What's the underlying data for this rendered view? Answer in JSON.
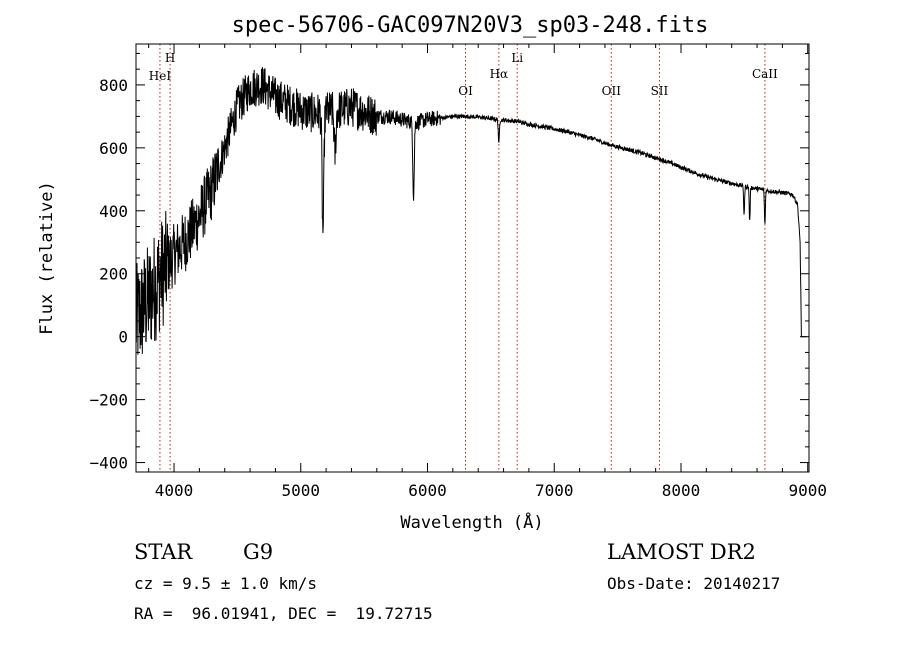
{
  "chart_data": {
    "type": "line",
    "title": "spec-56706-GAC097N20V3_sp03-248.fits",
    "xlabel": "Wavelength (Å)",
    "ylabel": "Flux (relative)",
    "xlim": [
      3700,
      9010
    ],
    "ylim": [
      -430,
      930
    ],
    "xticks": [
      4000,
      5000,
      6000,
      7000,
      8000,
      9000
    ],
    "yticks": [
      -400,
      -200,
      0,
      200,
      400,
      600,
      800
    ],
    "ytick_labels": [
      "−400",
      "−200",
      "0",
      "200",
      "400",
      "600",
      "800"
    ],
    "line_color": "#000000",
    "marker_color": "#b22222",
    "spectral_lines": [
      {
        "name": "HeI",
        "wavelength": 3889
      },
      {
        "name": "H",
        "wavelength": 3969
      },
      {
        "name": "OI",
        "wavelength": 6300
      },
      {
        "name": "Hα",
        "wavelength": 6563
      },
      {
        "name": "Li",
        "wavelength": 6708
      },
      {
        "name": "OII",
        "wavelength": 7450
      },
      {
        "name": "SII",
        "wavelength": 7830
      },
      {
        "name": "CaII",
        "wavelength": 8662
      }
    ],
    "continuum": [
      [
        3700,
        50
      ],
      [
        3800,
        120
      ],
      [
        3900,
        200
      ],
      [
        4000,
        260
      ],
      [
        4100,
        310
      ],
      [
        4200,
        380
      ],
      [
        4300,
        470
      ],
      [
        4400,
        600
      ],
      [
        4500,
        730
      ],
      [
        4600,
        790
      ],
      [
        4700,
        800
      ],
      [
        4800,
        760
      ],
      [
        4900,
        740
      ],
      [
        5000,
        720
      ],
      [
        5100,
        710
      ],
      [
        5200,
        715
      ],
      [
        5300,
        720
      ],
      [
        5400,
        730
      ],
      [
        5500,
        715
      ],
      [
        5600,
        700
      ],
      [
        5700,
        700
      ],
      [
        5800,
        690
      ],
      [
        5900,
        680
      ],
      [
        6000,
        690
      ],
      [
        6100,
        695
      ],
      [
        6200,
        700
      ],
      [
        6300,
        700
      ],
      [
        6400,
        698
      ],
      [
        6500,
        693
      ],
      [
        6600,
        688
      ],
      [
        6700,
        685
      ],
      [
        6800,
        675
      ],
      [
        6900,
        668
      ],
      [
        7000,
        660
      ],
      [
        7100,
        652
      ],
      [
        7200,
        640
      ],
      [
        7300,
        630
      ],
      [
        7400,
        615
      ],
      [
        7500,
        603
      ],
      [
        7600,
        593
      ],
      [
        7700,
        582
      ],
      [
        7800,
        568
      ],
      [
        7900,
        555
      ],
      [
        8000,
        538
      ],
      [
        8100,
        522
      ],
      [
        8200,
        508
      ],
      [
        8300,
        497
      ],
      [
        8400,
        487
      ],
      [
        8500,
        478
      ],
      [
        8600,
        470
      ],
      [
        8700,
        463
      ],
      [
        8800,
        458
      ],
      [
        8880,
        452
      ],
      [
        8920,
        420
      ],
      [
        8940,
        300
      ],
      [
        8950,
        0
      ],
      [
        8990,
        0
      ]
    ],
    "absorption_features": [
      {
        "center": 5175,
        "depth": 380,
        "width": 10
      },
      {
        "center": 5270,
        "depth": 140,
        "width": 10
      },
      {
        "center": 5890,
        "depth": 230,
        "width": 8
      },
      {
        "center": 6563,
        "depth": 80,
        "width": 6
      },
      {
        "center": 8498,
        "depth": 90,
        "width": 5
      },
      {
        "center": 8542,
        "depth": 110,
        "width": 5
      },
      {
        "center": 8662,
        "depth": 110,
        "width": 5
      }
    ],
    "noise": [
      {
        "upto": 3950,
        "amp": 180
      },
      {
        "upto": 4350,
        "amp": 100
      },
      {
        "upto": 5600,
        "amp": 65
      },
      {
        "upto": 6100,
        "amp": 25
      },
      {
        "upto": 9010,
        "amp": 7
      }
    ]
  },
  "info": {
    "class": "STAR",
    "subclass": "G9",
    "survey": "LAMOST DR2",
    "cz": "cz = 9.5 ± 1.0 km/s",
    "obs_date": "Obs-Date: 20140217",
    "coords": "RA =  96.01941, DEC =  19.72715"
  }
}
